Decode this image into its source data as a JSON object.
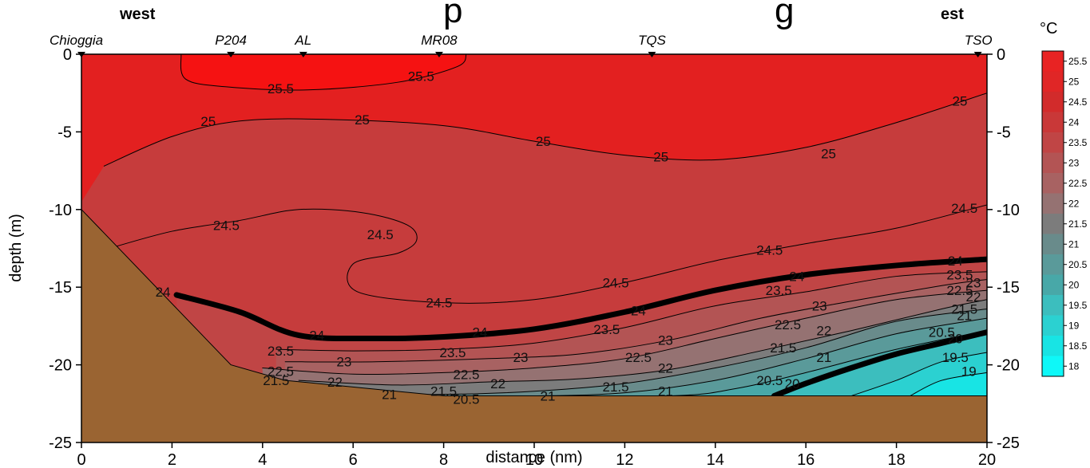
{
  "figure": {
    "title_visible": "p                               g",
    "west_label": "west",
    "east_label": "est",
    "unit_label": "°C",
    "xlabel": "distance (nm)",
    "ylabel": "depth (m)"
  },
  "chart_data": {
    "type": "heatmap",
    "xlabel": "distance (nm)",
    "ylabel": "depth (m)",
    "xlim": [
      0,
      20
    ],
    "ylim": [
      -25,
      0
    ],
    "x_ticks": [
      "0",
      "2",
      "4",
      "6",
      "8",
      "10",
      "12",
      "14",
      "16",
      "18",
      "20"
    ],
    "y_ticks": [
      "0",
      "-5",
      "-10",
      "-15",
      "-20",
      "-25"
    ],
    "stations": [
      {
        "name": "Chioggia",
        "x": 0
      },
      {
        "name": "P204",
        "x": 3.3
      },
      {
        "name": "AL",
        "x": 4.9
      },
      {
        "name": "MR08",
        "x": 7.9
      },
      {
        "name": "TQS",
        "x": 12.6
      },
      {
        "name": "TSO",
        "x": 19.8
      }
    ],
    "colorbar": {
      "unit": "°C",
      "levels": [
        "25.5",
        "25",
        "24.5",
        "24",
        "23.5",
        "23",
        "22.5",
        "22",
        "21.5",
        "21",
        "20.5",
        "20",
        "19.5",
        "19",
        "18.5",
        "18"
      ],
      "colors": [
        "#e82323",
        "#e02626",
        "#d22b2b",
        "#c93838",
        "#c04545",
        "#b35454",
        "#a86262",
        "#957272",
        "#7c7c7c",
        "#698b8b",
        "#5a9a9a",
        "#48a8a8",
        "#3cbebe",
        "#2bd1d1",
        "#18e4e4",
        "#0ef8f8"
      ]
    },
    "bottom": [
      {
        "x": 0,
        "depth": -10
      },
      {
        "x": 3.3,
        "depth": -20
      },
      {
        "x": 4.5,
        "depth": -21
      },
      {
        "x": 8,
        "depth": -22
      },
      {
        "x": 20,
        "depth": -22
      }
    ],
    "contours": [
      {
        "level": "25.5",
        "points": [
          [
            2.2,
            0
          ],
          [
            2.3,
            -1.6
          ],
          [
            3.2,
            -2.1
          ],
          [
            5,
            -2.3
          ],
          [
            7,
            -1.8
          ],
          [
            8.3,
            -0.8
          ],
          [
            8.5,
            0
          ]
        ],
        "labels": [
          {
            "text": "25.5",
            "x": 4.4,
            "y": -2.2
          },
          {
            "text": "25.5",
            "x": 7.5,
            "y": -1.4
          }
        ]
      },
      {
        "level": "25",
        "points": [
          [
            0.5,
            -7.2
          ],
          [
            2,
            -5.3
          ],
          [
            3.5,
            -4.3
          ],
          [
            5.5,
            -4.2
          ],
          [
            8,
            -4.6
          ],
          [
            10,
            -5.6
          ],
          [
            12,
            -6.5
          ],
          [
            14,
            -6.8
          ],
          [
            16,
            -6
          ],
          [
            18,
            -4.4
          ],
          [
            20,
            -2.5
          ]
        ],
        "labels": [
          {
            "text": "25",
            "x": 2.8,
            "y": -4.3
          },
          {
            "text": "25",
            "x": 6.2,
            "y": -4.2
          },
          {
            "text": "25",
            "x": 10.2,
            "y": -5.6
          },
          {
            "text": "25",
            "x": 12.8,
            "y": -6.6
          },
          {
            "text": "25",
            "x": 16.5,
            "y": -6.4
          },
          {
            "text": "25",
            "x": 19.4,
            "y": -3.0
          }
        ]
      },
      {
        "level": "24.5",
        "points": [
          [
            0.5,
            -12.6
          ],
          [
            2,
            -11.4
          ],
          [
            3.5,
            -10.7
          ],
          [
            4.8,
            -10
          ],
          [
            6.2,
            -10.2
          ],
          [
            7.2,
            -11
          ],
          [
            7.4,
            -12
          ],
          [
            7,
            -12.8
          ],
          [
            6,
            -13.5
          ],
          [
            6.1,
            -15.3
          ],
          [
            8,
            -16
          ],
          [
            10,
            -15.8
          ],
          [
            12,
            -14.7
          ],
          [
            14,
            -13.3
          ],
          [
            16,
            -12.2
          ],
          [
            18,
            -11.2
          ],
          [
            20,
            -9.7
          ]
        ],
        "labels": [
          {
            "text": "24.5",
            "x": 3.2,
            "y": -11
          },
          {
            "text": "24.5",
            "x": 6.6,
            "y": -11.6
          },
          {
            "text": "24.5",
            "x": 7.9,
            "y": -16
          },
          {
            "text": "24.5",
            "x": 11.8,
            "y": -14.7
          },
          {
            "text": "24.5",
            "x": 15.2,
            "y": -12.6
          },
          {
            "text": "24.5",
            "x": 19.5,
            "y": -9.9
          }
        ]
      },
      {
        "level": "24",
        "bold": true,
        "points": [
          [
            2.1,
            -15.5
          ],
          [
            3.5,
            -16.6
          ],
          [
            4.8,
            -18.1
          ],
          [
            6.5,
            -18.3
          ],
          [
            8,
            -18.2
          ],
          [
            10,
            -17.7
          ],
          [
            12,
            -16.6
          ],
          [
            14,
            -15.2
          ],
          [
            16,
            -14.2
          ],
          [
            18,
            -13.6
          ],
          [
            20,
            -13.2
          ]
        ],
        "labels": [
          {
            "text": "24",
            "x": 1.8,
            "y": -15.3
          },
          {
            "text": "24",
            "x": 5.2,
            "y": -18.1
          },
          {
            "text": "24",
            "x": 8.8,
            "y": -17.9
          },
          {
            "text": "24",
            "x": 12.3,
            "y": -16.5
          },
          {
            "text": "24",
            "x": 15.8,
            "y": -14.3
          },
          {
            "text": "24",
            "x": 19.3,
            "y": -13.3
          }
        ]
      },
      {
        "level": "23.5",
        "points": [
          [
            4.3,
            -19
          ],
          [
            6,
            -19.1
          ],
          [
            8,
            -19
          ],
          [
            10,
            -18.6
          ],
          [
            12,
            -17.6
          ],
          [
            14,
            -16.2
          ],
          [
            16,
            -15.3
          ],
          [
            18,
            -14.3
          ],
          [
            20,
            -14
          ]
        ],
        "labels": [
          {
            "text": "23.5",
            "x": 4.4,
            "y": -19.1
          },
          {
            "text": "23.5",
            "x": 8.2,
            "y": -19.2
          },
          {
            "text": "23.5",
            "x": 11.6,
            "y": -17.7
          },
          {
            "text": "23.5",
            "x": 15.4,
            "y": -15.2
          },
          {
            "text": "23.5",
            "x": 19.4,
            "y": -14.2
          }
        ]
      },
      {
        "level": "23",
        "points": [
          [
            4.5,
            -19.8
          ],
          [
            6.5,
            -19.8
          ],
          [
            9,
            -19.6
          ],
          [
            11,
            -19.3
          ],
          [
            13,
            -18.4
          ],
          [
            15,
            -17
          ],
          [
            17,
            -15.9
          ],
          [
            19,
            -14.9
          ],
          [
            20,
            -14.5
          ]
        ],
        "labels": [
          {
            "text": "23",
            "x": 5.8,
            "y": -19.8
          },
          {
            "text": "23",
            "x": 9.7,
            "y": -19.5
          },
          {
            "text": "23",
            "x": 12.9,
            "y": -18.4
          },
          {
            "text": "23",
            "x": 16.3,
            "y": -16.2
          },
          {
            "text": "23",
            "x": 19.7,
            "y": -14.7
          }
        ]
      },
      {
        "level": "22.5",
        "points": [
          [
            4.0,
            -20.2
          ],
          [
            6,
            -20.6
          ],
          [
            8,
            -20.5
          ],
          [
            10,
            -20.2
          ],
          [
            12,
            -19.6
          ],
          [
            14,
            -18.3
          ],
          [
            16,
            -17
          ],
          [
            18,
            -15.8
          ],
          [
            20,
            -15.2
          ]
        ],
        "labels": [
          {
            "text": "22.5",
            "x": 4.4,
            "y": -20.4
          },
          {
            "text": "22.5",
            "x": 8.5,
            "y": -20.6
          },
          {
            "text": "22.5",
            "x": 12.3,
            "y": -19.5
          },
          {
            "text": "22.5",
            "x": 15.6,
            "y": -17.4
          },
          {
            "text": "22.5",
            "x": 19.4,
            "y": -15.2
          }
        ]
      },
      {
        "level": "22",
        "points": [
          [
            4.8,
            -21
          ],
          [
            7,
            -21.3
          ],
          [
            9,
            -21.1
          ],
          [
            11,
            -20.9
          ],
          [
            13,
            -20.3
          ],
          [
            15,
            -19.1
          ],
          [
            17,
            -17.8
          ],
          [
            19,
            -16.4
          ],
          [
            20,
            -15.8
          ]
        ],
        "labels": [
          {
            "text": "22",
            "x": 5.6,
            "y": -21.1
          },
          {
            "text": "22",
            "x": 9.2,
            "y": -21.2
          },
          {
            "text": "22",
            "x": 12.9,
            "y": -20.2
          },
          {
            "text": "22",
            "x": 16.4,
            "y": -17.8
          },
          {
            "text": "22",
            "x": 19.7,
            "y": -15.6
          }
        ]
      },
      {
        "level": "21.5",
        "points": [
          [
            4.0,
            -20.8
          ],
          [
            6,
            -21.8
          ],
          [
            8,
            -21.9
          ],
          [
            10,
            -21.7
          ],
          [
            12,
            -21.2
          ],
          [
            14,
            -20.2
          ],
          [
            16,
            -18.9
          ],
          [
            18,
            -17.2
          ],
          [
            20,
            -16.4
          ]
        ],
        "labels": [
          {
            "text": "21.5",
            "x": 4.3,
            "y": -21.0
          },
          {
            "text": "21.5",
            "x": 8.0,
            "y": -21.7
          },
          {
            "text": "21.5",
            "x": 11.8,
            "y": -21.4
          },
          {
            "text": "21.5",
            "x": 15.5,
            "y": -18.9
          },
          {
            "text": "21.5",
            "x": 19.5,
            "y": -16.4
          }
        ]
      },
      {
        "level": "21",
        "points": [
          [
            5.5,
            -21.9
          ],
          [
            8,
            -22
          ],
          [
            10,
            -22
          ],
          [
            12,
            -21.8
          ],
          [
            14,
            -21
          ],
          [
            16,
            -19.6
          ],
          [
            18,
            -18
          ],
          [
            20,
            -17
          ]
        ],
        "labels": [
          {
            "text": "21",
            "x": 6.8,
            "y": -21.9
          },
          {
            "text": "21",
            "x": 10.3,
            "y": -22.0
          },
          {
            "text": "21",
            "x": 12.9,
            "y": -21.7
          },
          {
            "text": "21",
            "x": 16.4,
            "y": -19.5
          },
          {
            "text": "21",
            "x": 19.5,
            "y": -16.8
          }
        ]
      },
      {
        "level": "20.5",
        "points": [
          [
            8,
            -22
          ],
          [
            9,
            -22
          ],
          [
            13,
            -22
          ],
          [
            14.5,
            -21.5
          ],
          [
            16,
            -20.5
          ],
          [
            18,
            -19
          ],
          [
            20,
            -17.8
          ]
        ],
        "labels": [
          {
            "text": "20.5",
            "x": 8.5,
            "y": -22.2
          },
          {
            "text": "20.5",
            "x": 15.2,
            "y": -21.0
          },
          {
            "text": "20.5",
            "x": 19.0,
            "y": -17.9
          }
        ]
      },
      {
        "level": "20",
        "bold": true,
        "points": [
          [
            15.3,
            -22
          ],
          [
            16,
            -21.2
          ],
          [
            17,
            -20.2
          ],
          [
            18,
            -19.3
          ],
          [
            19,
            -18.6
          ],
          [
            20,
            -17.9
          ]
        ],
        "labels": [
          {
            "text": "20",
            "x": 15.7,
            "y": -21.2
          },
          {
            "text": "20",
            "x": 19.3,
            "y": -18.3
          }
        ]
      },
      {
        "level": "19.5",
        "points": [
          [
            17,
            -22
          ],
          [
            18,
            -21
          ],
          [
            19,
            -19.8
          ],
          [
            20,
            -19.2
          ]
        ],
        "labels": [
          {
            "text": "19.5",
            "x": 19.3,
            "y": -19.5
          }
        ]
      },
      {
        "level": "19",
        "points": [
          [
            18.3,
            -22
          ],
          [
            19,
            -21
          ],
          [
            20,
            -20.5
          ]
        ],
        "labels": [
          {
            "text": "19",
            "x": 19.6,
            "y": -20.4
          }
        ]
      }
    ]
  }
}
